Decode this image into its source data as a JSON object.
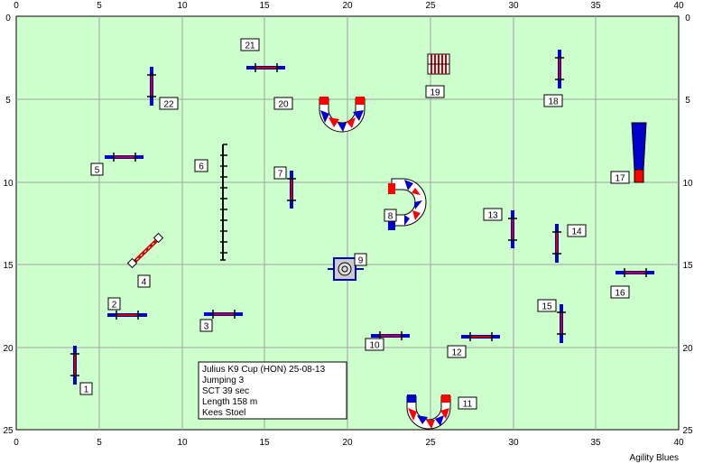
{
  "axes": {
    "x_ticks": [
      "0",
      "5",
      "10",
      "15",
      "20",
      "25",
      "30",
      "35",
      "40"
    ],
    "y_ticks": [
      "0",
      "5",
      "10",
      "15",
      "20",
      "25"
    ]
  },
  "info": {
    "line1": "Julius K9 Cup (HON) 25-08-13",
    "line2": "Jumping 3",
    "line3": "SCT 39 sec",
    "line4": "Length 158 m",
    "line5": "Kees Stoel"
  },
  "credit": "Agility Blues",
  "numbers": [
    "1",
    "2",
    "3",
    "4",
    "5",
    "6",
    "7",
    "8",
    "9",
    "10",
    "11",
    "12",
    "13",
    "14",
    "15",
    "16",
    "17",
    "18",
    "19",
    "20",
    "21",
    "22"
  ],
  "colors": {
    "field": "#ccffcc",
    "grid": "#a0a0a0",
    "tunnel_red": "#ff0000",
    "tunnel_blue": "#0000cc",
    "jump_pole": "#cc0000"
  }
}
